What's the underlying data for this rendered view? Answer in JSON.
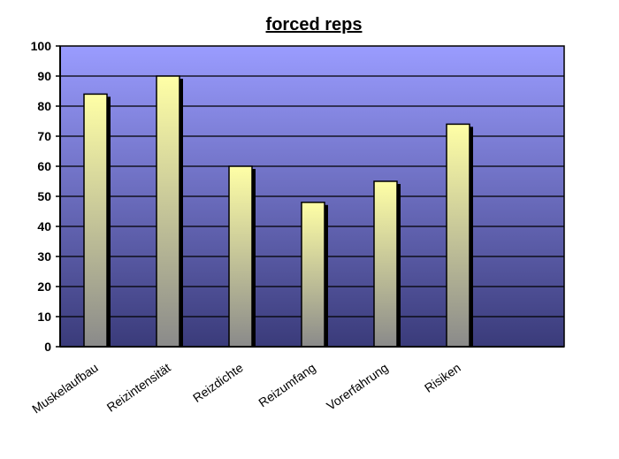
{
  "chart_data": {
    "type": "bar",
    "title": "forced reps",
    "categories": [
      "Muskelaufbau",
      "Reizintensität",
      "Reizdichte",
      "Reizumfang",
      "Vorerfahrung",
      "Risiken"
    ],
    "values": [
      84,
      90,
      60,
      48,
      55,
      74
    ],
    "xlabel": "",
    "ylabel": "",
    "ylim": [
      0,
      100
    ],
    "yticks": [
      0,
      10,
      20,
      30,
      40,
      50,
      60,
      70,
      80,
      90,
      100
    ],
    "grid": true,
    "legend": "none",
    "colors": {
      "plot_top": "#9a9cff",
      "plot_bottom": "#3a3b7a",
      "bar_top": "#ffffa6",
      "bar_bottom": "#8a8a8a"
    }
  }
}
